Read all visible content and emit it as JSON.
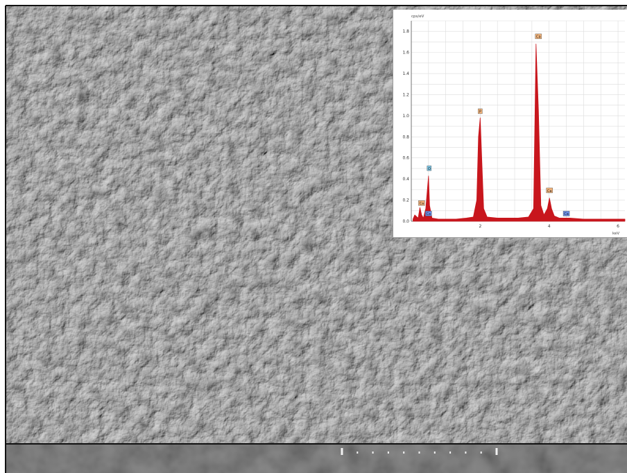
{
  "micrograph": {
    "description_icon": "sem-surface-texture",
    "scale_bar_ticks": 11
  },
  "chart_data": {
    "type": "line",
    "ylabel": "cps/eV",
    "xlabel": "keV",
    "xlim": [
      0,
      6.2
    ],
    "ylim": [
      0,
      1.9
    ],
    "x_ticks": [
      "2",
      "4",
      "6"
    ],
    "y_ticks": [
      "0.0",
      "0.2",
      "0.4",
      "0.6",
      "0.8",
      "1.0",
      "1.2",
      "1.4",
      "1.6",
      "1.8"
    ],
    "grid": true,
    "series": [
      {
        "color": "#c8161d",
        "x": [
          0.05,
          0.1,
          0.2,
          0.25,
          0.3,
          0.35,
          0.42,
          0.5,
          0.53,
          0.6,
          0.8,
          1.0,
          1.3,
          1.6,
          1.8,
          1.9,
          1.95,
          2.0,
          2.05,
          2.1,
          2.2,
          2.5,
          2.8,
          3.1,
          3.4,
          3.55,
          3.62,
          3.69,
          3.76,
          3.85,
          3.95,
          4.01,
          4.07,
          4.15,
          4.3,
          4.6,
          5.0,
          5.5,
          6.0,
          6.2
        ],
        "values": [
          0.02,
          0.06,
          0.03,
          0.13,
          0.06,
          0.03,
          0.12,
          0.43,
          0.15,
          0.03,
          0.02,
          0.02,
          0.02,
          0.03,
          0.04,
          0.2,
          0.8,
          0.98,
          0.55,
          0.12,
          0.04,
          0.03,
          0.03,
          0.03,
          0.04,
          0.12,
          1.68,
          1.05,
          0.15,
          0.06,
          0.12,
          0.22,
          0.12,
          0.05,
          0.03,
          0.03,
          0.02,
          0.02,
          0.02,
          0.02
        ]
      }
    ],
    "peak_labels": [
      {
        "label": "O",
        "x": 0.52,
        "y": 0.46,
        "color": "#7ec8e8"
      },
      {
        "label": "Ca",
        "x": 0.3,
        "y": 0.13,
        "color": "#f2b37a"
      },
      {
        "label": "Ca",
        "x": 0.5,
        "y": 0.03,
        "color": "#6a8ee8"
      },
      {
        "label": "P",
        "x": 2.0,
        "y": 1.0,
        "color": "#f2b37a"
      },
      {
        "label": "Ca",
        "x": 3.69,
        "y": 1.71,
        "color": "#f2b37a"
      },
      {
        "label": "Ca",
        "x": 4.01,
        "y": 0.25,
        "color": "#f2b37a"
      },
      {
        "label": "Ca",
        "x": 4.5,
        "y": 0.03,
        "color": "#6a8ee8"
      }
    ]
  }
}
